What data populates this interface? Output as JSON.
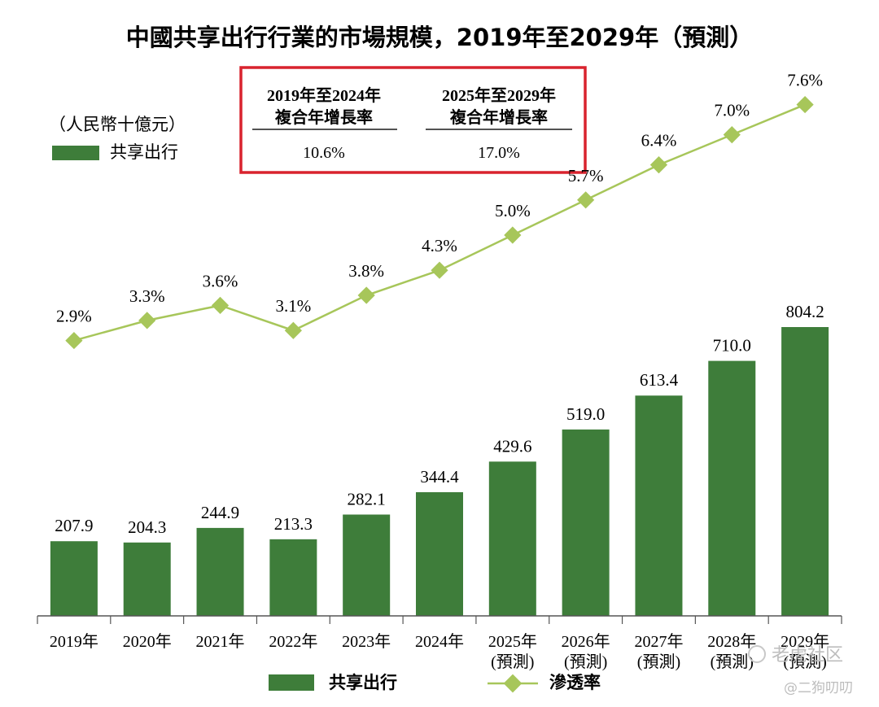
{
  "title": "中國共享出行行業的市場規模，2019年至2029年（預測）",
  "unit": "（人民幣十億元）",
  "top_legend": {
    "label": "共享出行"
  },
  "cagr": {
    "columns": [
      {
        "header_line1": "2019年至2024年",
        "header_line2": "複合年增長率",
        "value": "10.6%"
      },
      {
        "header_line1": "2025年至2029年",
        "header_line2": "複合年增長率",
        "value": "17.0%"
      }
    ]
  },
  "bottom_legend": {
    "bar_label": "共享出行",
    "line_label": "滲透率"
  },
  "watermark": {
    "line1": "老虎社区",
    "line2": "@二狗叨叨"
  },
  "colors": {
    "bar": "#3e7d3a",
    "line": "#a7c65a",
    "marker": "#a7c65a",
    "highlight_box": "#d9232e"
  },
  "chart_data": {
    "type": "bar",
    "categories": [
      "2019年",
      "2020年",
      "2021年",
      "2022年",
      "2023年",
      "2024年",
      "2025年",
      "2026年",
      "2027年",
      "2028年",
      "2029年"
    ],
    "category_sublabels": [
      "",
      "",
      "",
      "",
      "",
      "",
      "(預測)",
      "(預測)",
      "(預測)",
      "(預測)",
      "(預測)"
    ],
    "series": [
      {
        "name": "共享出行",
        "type": "bar",
        "values": [
          207.9,
          204.3,
          244.9,
          213.3,
          282.1,
          344.4,
          429.6,
          519.0,
          613.4,
          710.0,
          804.2
        ],
        "value_labels": [
          "207.9",
          "204.3",
          "244.9",
          "213.3",
          "282.1",
          "344.4",
          "429.6",
          "519.0",
          "613.4",
          "710.0",
          "804.2"
        ]
      },
      {
        "name": "滲透率",
        "type": "line",
        "values": [
          2.9,
          3.3,
          3.6,
          3.1,
          3.8,
          4.3,
          5.0,
          5.7,
          6.4,
          7.0,
          7.6
        ],
        "value_labels": [
          "2.9%",
          "3.3%",
          "3.6%",
          "3.1%",
          "3.8%",
          "4.3%",
          "5.0%",
          "5.7%",
          "6.4%",
          "7.0%",
          "7.6%"
        ]
      }
    ],
    "title": "中國共享出行行業的市場規模，2019年至2029年（預測）",
    "ylabel": "（人民幣十億元）",
    "grid": false,
    "legend": "bottom"
  }
}
